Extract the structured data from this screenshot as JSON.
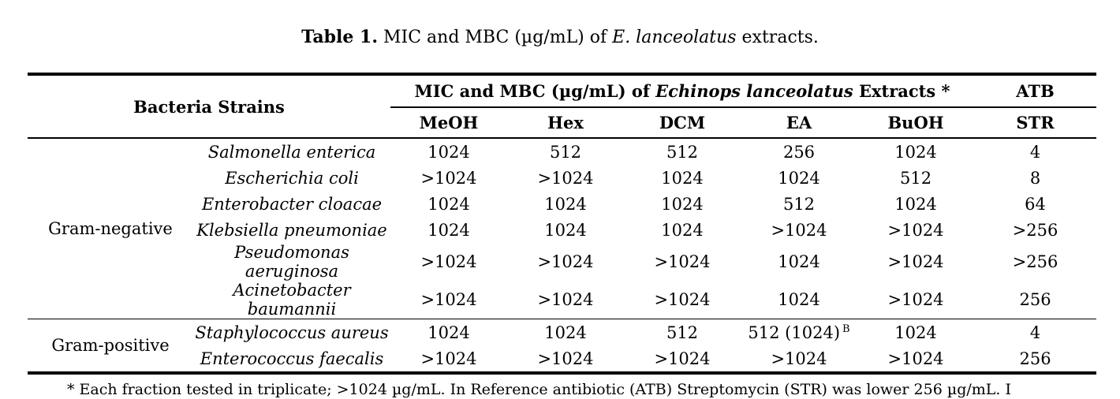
{
  "caption": {
    "label": "Table 1.",
    "pre": " MIC and MBC (µg/mL) of ",
    "species": "E. lanceolatus",
    "post": " extracts."
  },
  "table": {
    "bacteria_header": "Bacteria Strains",
    "extracts_header": {
      "prefix": "MIC and MBC (µg/mL) of ",
      "italic": "Echinops lanceolatus",
      "suffix": " Extracts *"
    },
    "atb_header": "ATB",
    "subheaders": [
      "MeOH",
      "Hex",
      "DCM",
      "EA",
      "BuOH"
    ],
    "atb_subheader": "STR",
    "groups": [
      {
        "name": "Gram-negative",
        "rows": [
          {
            "species": "Salmonella enterica",
            "values": [
              "1024",
              "512",
              "512",
              "256",
              "1024",
              "4"
            ]
          },
          {
            "species": "Escherichia coli",
            "values": [
              ">1024",
              ">1024",
              "1024",
              "1024",
              "512",
              "8"
            ]
          },
          {
            "species": "Enterobacter cloacae",
            "values": [
              "1024",
              "1024",
              "1024",
              "512",
              "1024",
              "64"
            ]
          },
          {
            "species": "Klebsiella pneumoniae",
            "values": [
              "1024",
              "1024",
              "1024",
              ">1024",
              ">1024",
              ">256"
            ]
          },
          {
            "species": "Pseudomonas aeruginosa",
            "values": [
              ">1024",
              ">1024",
              ">1024",
              "1024",
              ">1024",
              ">256"
            ]
          },
          {
            "species": "Acinetobacter baumannii",
            "values": [
              ">1024",
              ">1024",
              ">1024",
              "1024",
              ">1024",
              "256"
            ]
          }
        ]
      },
      {
        "name": "Gram-positive",
        "rows": [
          {
            "species": "Staphylococcus aureus",
            "values": [
              "1024",
              "1024",
              "512",
              "512 (1024)^B",
              "1024",
              "4"
            ]
          },
          {
            "species": "Enterococcus faecalis",
            "values": [
              ">1024",
              ">1024",
              ">1024",
              ">1024",
              ">1024",
              "256"
            ]
          }
        ]
      }
    ]
  },
  "footnote": "* Each fraction tested in triplicate; >1024 µg/mL. In Reference antibiotic (ATB) Streptomycin (STR) was lower 256 µg/mL. I"
}
